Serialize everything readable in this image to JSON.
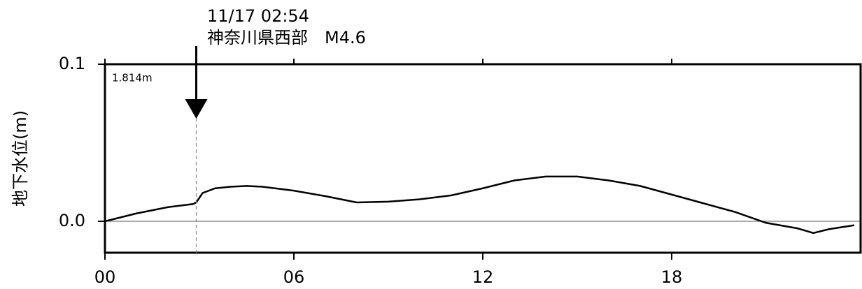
{
  "chart_data": {
    "type": "line",
    "ylabel": "地下水位(m)",
    "inset_label": "1.814m",
    "annotation": {
      "time": "11/17 02:54",
      "text": "神奈川県西部　M4.6",
      "x": 2.9
    },
    "x": [
      0,
      1,
      2,
      2.8,
      2.9,
      3.1,
      3.5,
      4,
      4.5,
      5,
      6,
      7,
      8,
      9,
      10,
      11,
      12,
      13,
      14,
      15,
      16,
      17,
      18,
      19,
      20,
      21,
      22,
      22.5,
      23,
      23.8
    ],
    "series": [
      {
        "color": "#000000",
        "values": [
          0.0,
          0.005,
          0.009,
          0.011,
          0.012,
          0.018,
          0.021,
          0.022,
          0.0225,
          0.022,
          0.0195,
          0.016,
          0.012,
          0.0125,
          0.014,
          0.0165,
          0.021,
          0.026,
          0.0285,
          0.0285,
          0.026,
          0.0225,
          0.017,
          0.0115,
          0.006,
          -0.001,
          -0.0045,
          -0.0075,
          -0.005,
          -0.0025
        ]
      }
    ],
    "xlim": [
      0,
      24
    ],
    "xticks": [
      {
        "value": 0,
        "label": "00"
      },
      {
        "value": 6,
        "label": "06"
      },
      12,
      18
    ],
    "ylim": [
      -0.02,
      0.1
    ],
    "yticks": [
      {
        "value": 0,
        "label": "0.0"
      },
      0.1
    ],
    "grid": true
  }
}
